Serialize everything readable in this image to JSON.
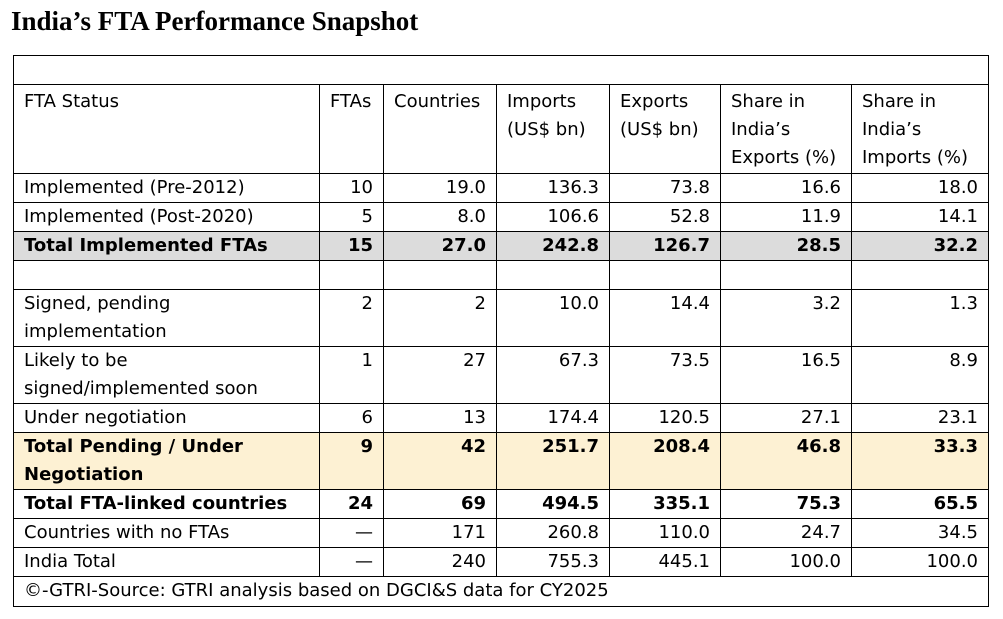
{
  "title": "India’s FTA Performance Snapshot",
  "table": {
    "headers": {
      "status": "FTA Status",
      "ftas": "FTAs",
      "countries": "Countries",
      "imports": "Imports (US$ bn)",
      "exports": "Exports (US$ bn)",
      "share_exports": "Share in India’s Exports (%)",
      "share_imports": "Share in India’s Imports (%)"
    },
    "rows": [
      {
        "status": "Implemented (Pre-2012)",
        "ftas": "10",
        "countries": "19.0",
        "imports": "136.3",
        "exports": "73.8",
        "share_exports": "16.6",
        "share_imports": "18.0"
      },
      {
        "status": "Implemented (Post-2020)",
        "ftas": "5",
        "countries": "8.0",
        "imports": "106.6",
        "exports": "52.8",
        "share_exports": "11.9",
        "share_imports": "14.1"
      },
      {
        "status": "Total Implemented FTAs",
        "ftas": "15",
        "countries": "27.0",
        "imports": "242.8",
        "exports": "126.7",
        "share_exports": "28.5",
        "share_imports": "32.2"
      },
      {
        "status": "Signed, pending implementation",
        "ftas": "2",
        "countries": "2",
        "imports": "10.0",
        "exports": "14.4",
        "share_exports": "3.2",
        "share_imports": "1.3"
      },
      {
        "status": "Likely to be signed/implemented soon",
        "ftas": "1",
        "countries": "27",
        "imports": "67.3",
        "exports": "73.5",
        "share_exports": "16.5",
        "share_imports": "8.9"
      },
      {
        "status": "Under negotiation",
        "ftas": "6",
        "countries": "13",
        "imports": "174.4",
        "exports": "120.5",
        "share_exports": "27.1",
        "share_imports": "23.1"
      },
      {
        "status": "Total Pending / Under Negotiation",
        "ftas": "9",
        "countries": "42",
        "imports": "251.7",
        "exports": "208.4",
        "share_exports": "46.8",
        "share_imports": "33.3"
      },
      {
        "status": "Total FTA-linked countries",
        "ftas": "24",
        "countries": "69",
        "imports": "494.5",
        "exports": "335.1",
        "share_exports": "75.3",
        "share_imports": "65.5"
      },
      {
        "status": "Countries with no FTAs",
        "ftas": "—",
        "countries": "171",
        "imports": "260.8",
        "exports": "110.0",
        "share_exports": "24.7",
        "share_imports": "34.5"
      },
      {
        "status": "India Total",
        "ftas": "—",
        "countries": "240",
        "imports": "755.3",
        "exports": "445.1",
        "share_exports": "100.0",
        "share_imports": "100.0"
      }
    ],
    "footer": "©-GTRI-Source: GTRI analysis based on DGCI&S data for CY2025"
  },
  "colors": {
    "total_implemented_bg": "#dcdcdc",
    "total_pending_bg": "#fdf1d3",
    "border": "#000000"
  }
}
